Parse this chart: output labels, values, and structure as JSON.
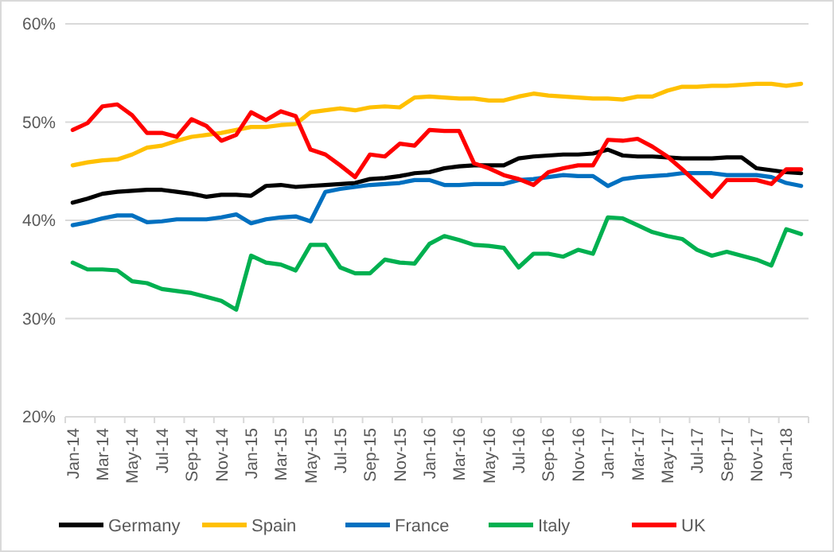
{
  "chart_data": {
    "type": "line",
    "categories": [
      "Jan-14",
      null,
      "Mar-14",
      null,
      "May-14",
      null,
      "Jul-14",
      null,
      "Sep-14",
      null,
      "Nov-14",
      null,
      "Jan-15",
      null,
      "Mar-15",
      null,
      "May-15",
      null,
      "Jul-15",
      null,
      "Sep-15",
      null,
      "Nov-15",
      null,
      "Jan-16",
      null,
      "Mar-16",
      null,
      "May-16",
      null,
      "Jul-16",
      null,
      "Sep-16",
      null,
      "Nov-16",
      null,
      "Jan-17",
      null,
      "Mar-17",
      null,
      "May-17",
      null,
      "Jul-17",
      null,
      "Sep-17",
      null,
      "Nov-17",
      null,
      "Jan-18",
      null
    ],
    "series": [
      {
        "name": "Germany",
        "color": "#000000",
        "values": [
          41.8,
          42.2,
          42.7,
          42.9,
          43.0,
          43.1,
          43.1,
          42.9,
          42.7,
          42.4,
          42.6,
          42.6,
          42.5,
          43.5,
          43.6,
          43.4,
          43.5,
          43.6,
          43.7,
          43.8,
          44.2,
          44.3,
          44.5,
          44.8,
          44.9,
          45.3,
          45.5,
          45.6,
          45.6,
          45.6,
          46.3,
          46.5,
          46.6,
          46.7,
          46.7,
          46.8,
          47.2,
          46.6,
          46.5,
          46.5,
          46.4,
          46.3,
          46.3,
          46.3,
          46.4,
          46.4,
          45.3,
          45.1,
          44.9,
          44.8
        ]
      },
      {
        "name": "Spain",
        "color": "#ffc000",
        "values": [
          45.6,
          45.9,
          46.1,
          46.2,
          46.7,
          47.4,
          47.6,
          48.1,
          48.5,
          48.7,
          48.9,
          49.2,
          49.5,
          49.5,
          49.7,
          49.8,
          51.0,
          51.2,
          51.4,
          51.2,
          51.5,
          51.6,
          51.5,
          52.5,
          52.6,
          52.5,
          52.4,
          52.4,
          52.2,
          52.2,
          52.6,
          52.9,
          52.7,
          52.6,
          52.5,
          52.4,
          52.4,
          52.3,
          52.6,
          52.6,
          53.2,
          53.6,
          53.6,
          53.7,
          53.7,
          53.8,
          53.9,
          53.9,
          53.7,
          53.9
        ]
      },
      {
        "name": "France",
        "color": "#0070c0",
        "values": [
          39.5,
          39.8,
          40.2,
          40.5,
          40.5,
          39.8,
          39.9,
          40.1,
          40.1,
          40.1,
          40.3,
          40.6,
          39.7,
          40.1,
          40.3,
          40.4,
          39.9,
          42.9,
          43.2,
          43.4,
          43.6,
          43.7,
          43.8,
          44.1,
          44.1,
          43.6,
          43.6,
          43.7,
          43.7,
          43.7,
          44.1,
          44.2,
          44.4,
          44.6,
          44.5,
          44.5,
          43.5,
          44.2,
          44.4,
          44.5,
          44.6,
          44.8,
          44.8,
          44.8,
          44.6,
          44.6,
          44.6,
          44.4,
          43.8,
          43.5
        ]
      },
      {
        "name": "Italy",
        "color": "#00b050",
        "values": [
          35.7,
          35.0,
          35.0,
          34.9,
          33.8,
          33.6,
          33.0,
          32.8,
          32.6,
          32.2,
          31.8,
          30.9,
          36.4,
          35.7,
          35.5,
          34.9,
          37.5,
          37.5,
          35.2,
          34.6,
          34.6,
          36.0,
          35.7,
          35.6,
          37.6,
          38.4,
          38.0,
          37.5,
          37.4,
          37.2,
          35.2,
          36.6,
          36.6,
          36.3,
          37.0,
          36.6,
          40.3,
          40.2,
          39.5,
          38.8,
          38.4,
          38.1,
          37.0,
          36.4,
          36.8,
          36.4,
          36.0,
          35.4,
          39.1,
          38.6
        ]
      },
      {
        "name": "UK",
        "color": "#ff0000",
        "values": [
          49.2,
          49.9,
          51.6,
          51.8,
          50.7,
          48.9,
          48.9,
          48.5,
          50.3,
          49.6,
          48.1,
          48.7,
          51.0,
          50.2,
          51.1,
          50.6,
          47.2,
          46.7,
          45.6,
          44.4,
          46.7,
          46.5,
          47.8,
          47.6,
          49.2,
          49.1,
          49.1,
          45.8,
          45.3,
          44.6,
          44.2,
          43.6,
          44.9,
          45.3,
          45.6,
          45.6,
          48.2,
          48.1,
          48.3,
          47.5,
          46.5,
          45.2,
          43.8,
          42.4,
          44.1,
          44.1,
          44.1,
          43.7,
          45.2,
          45.2
        ]
      }
    ],
    "ylim": [
      20,
      60
    ],
    "yticks": [
      {
        "value": 20,
        "label": "20%"
      },
      {
        "value": 30,
        "label": "30%"
      },
      {
        "value": 40,
        "label": "40%"
      },
      {
        "value": 50,
        "label": "50%"
      },
      {
        "value": 60,
        "label": "60%"
      }
    ],
    "grid": "y",
    "legend": "bottom",
    "marker": "none",
    "line_style": "solid"
  }
}
